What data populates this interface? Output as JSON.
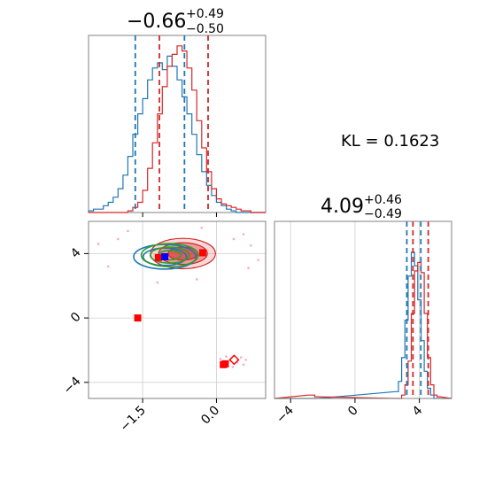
{
  "colors": {
    "blue": "#1f77b4",
    "red": "#d62728",
    "green": "#2ca02c",
    "pink": "#f5a9c8",
    "marker_red": "#ff0000",
    "marker_blue": "#0000ff"
  },
  "chart_data": {
    "type": "corner",
    "parameters": [
      {
        "title_center": "−0.66",
        "title_plus": "+0.49",
        "title_minus": "−0.50",
        "range": [
          -2.6,
          1.0
        ],
        "ticks": [
          -1.5,
          0.0
        ],
        "tick_labels": [
          "−1.5",
          "0.0"
        ],
        "quantiles": {
          "blue": [
            -1.65,
            -0.65
          ],
          "red": [
            -1.16,
            -0.17
          ]
        },
        "histogram_x": [
          -1.05,
          -0.95,
          -0.85,
          -0.75,
          -0.65,
          -0.55,
          -0.45,
          -0.35,
          -0.25,
          -0.15,
          -0.05,
          0.05,
          0.15,
          0.25,
          0.35,
          0.45,
          0.55,
          0.65,
          0.75,
          0.85,
          0.95
        ],
        "histogram_x_full": [
          -2.55,
          -2.45,
          -2.35,
          -2.25,
          -2.15,
          -2.05,
          -1.95,
          -1.85,
          -1.75,
          -1.65,
          -1.55,
          -1.45,
          -1.35,
          -1.25,
          -1.15,
          -1.05,
          -0.95,
          -0.85,
          -0.75,
          -0.65,
          -0.55,
          -0.45,
          -0.35,
          -0.25,
          -0.15,
          -0.05,
          0.05,
          0.15,
          0.25,
          0.35,
          0.45,
          0.55,
          0.65,
          0.75,
          0.85,
          0.95
        ],
        "histogram_blue": [
          0.01,
          0.02,
          0.02,
          0.04,
          0.06,
          0.09,
          0.14,
          0.22,
          0.33,
          0.46,
          0.58,
          0.67,
          0.78,
          0.85,
          0.88,
          0.84,
          0.92,
          0.86,
          0.78,
          0.68,
          0.58,
          0.46,
          0.34,
          0.24,
          0.16,
          0.1,
          0.06,
          0.04,
          0.02,
          0.01,
          0.0,
          0.0,
          0.0,
          0.0,
          0.0,
          0.0
        ],
        "histogram_red": [
          0.0,
          0.0,
          0.0,
          0.0,
          0.0,
          0.0,
          0.0,
          0.0,
          0.01,
          0.03,
          0.06,
          0.13,
          0.26,
          0.41,
          0.58,
          0.74,
          0.86,
          0.93,
          0.98,
          0.95,
          0.85,
          0.72,
          0.54,
          0.38,
          0.24,
          0.14,
          0.08,
          0.05,
          0.04,
          0.03,
          0.02,
          0.01,
          0.01,
          0.0,
          0.0,
          0.0
        ]
      },
      {
        "title_center": "4.09",
        "title_plus": "+0.46",
        "title_minus": "−0.49",
        "range": [
          -5.0,
          6.0
        ],
        "ticks": [
          -4,
          0,
          4
        ],
        "tick_labels": [
          "−4",
          "0",
          "4"
        ],
        "quantiles": {
          "blue": [
            3.22,
            4.09
          ],
          "red": [
            3.6,
            4.55
          ]
        },
        "histogram_x_full": [
          -2.8,
          -2.6,
          -2.4,
          2.6,
          2.8,
          3.0,
          3.2,
          3.4,
          3.6,
          3.8,
          4.0,
          4.2,
          4.4,
          4.6,
          4.8,
          5.0,
          5.2
        ],
        "histogram_blue": [
          0.0,
          0.0,
          0.0,
          0.04,
          0.1,
          0.24,
          0.46,
          0.72,
          0.86,
          0.78,
          0.58,
          0.34,
          0.16,
          0.06,
          0.02,
          0.0,
          0.0
        ],
        "histogram_red": [
          0.02,
          0.02,
          0.01,
          0.0,
          0.0,
          0.02,
          0.08,
          0.22,
          0.5,
          0.75,
          0.8,
          0.74,
          0.5,
          0.24,
          0.08,
          0.02,
          0.01
        ]
      }
    ],
    "joint": {
      "x_range": [
        -2.6,
        1.0
      ],
      "y_range": [
        -5.0,
        6.0
      ],
      "contours": [
        {
          "color": "red",
          "filled": true,
          "cx": -0.68,
          "cy": 4.0,
          "rx": 1.2,
          "ry": 1.05,
          "opacity": 0.18
        },
        {
          "color": "red",
          "filled": true,
          "cx": -0.68,
          "cy": 4.0,
          "rx": 0.9,
          "ry": 0.75,
          "opacity": 0.35
        },
        {
          "color": "red",
          "filled": true,
          "cx": -0.68,
          "cy": 4.0,
          "rx": 0.55,
          "ry": 0.45,
          "opacity": 0.55
        },
        {
          "color": "blue",
          "filled": false,
          "cx": -1.05,
          "cy": 3.8,
          "rx": 1.15,
          "ry": 0.85,
          "opacity": 1
        },
        {
          "color": "blue",
          "filled": false,
          "cx": -1.05,
          "cy": 3.8,
          "rx": 0.8,
          "ry": 0.6,
          "opacity": 1
        },
        {
          "color": "green",
          "filled": false,
          "cx": -0.95,
          "cy": 3.9,
          "rx": 1.05,
          "ry": 0.8,
          "opacity": 1
        },
        {
          "color": "green",
          "filled": false,
          "cx": -0.95,
          "cy": 3.9,
          "rx": 0.72,
          "ry": 0.55,
          "opacity": 1
        },
        {
          "color": "green",
          "filled": false,
          "cx": -0.95,
          "cy": 3.9,
          "rx": 0.42,
          "ry": 0.32,
          "opacity": 1
        }
      ],
      "markers": [
        {
          "x": -1.18,
          "y": 3.75,
          "color": "marker_red",
          "shape": "square"
        },
        {
          "x": -1.05,
          "y": 3.8,
          "color": "marker_blue",
          "shape": "square"
        },
        {
          "x": -0.28,
          "y": 4.05,
          "color": "marker_red",
          "shape": "square"
        },
        {
          "x": -1.6,
          "y": 0.0,
          "color": "marker_red",
          "shape": "square"
        },
        {
          "x": 0.14,
          "y": -2.9,
          "color": "marker_red",
          "shape": "square"
        },
        {
          "x": 0.18,
          "y": -2.85,
          "color": "marker_red",
          "shape": "square"
        },
        {
          "x": 0.36,
          "y": -2.6,
          "color": "marker_red",
          "shape": "diamond"
        }
      ],
      "scatter_points": [
        {
          "x": 0.28,
          "y": -2.6
        },
        {
          "x": 0.42,
          "y": -2.75
        },
        {
          "x": 0.5,
          "y": -2.45
        },
        {
          "x": 0.2,
          "y": -2.4
        },
        {
          "x": 0.55,
          "y": -2.9
        },
        {
          "x": 0.08,
          "y": -2.55
        },
        {
          "x": 0.33,
          "y": -3.05
        },
        {
          "x": 0.6,
          "y": -2.6
        },
        {
          "x": -2.2,
          "y": 3.2
        },
        {
          "x": -2.4,
          "y": 4.6
        },
        {
          "x": 0.7,
          "y": 4.5
        },
        {
          "x": 0.85,
          "y": 3.6
        },
        {
          "x": -1.8,
          "y": 5.4
        },
        {
          "x": 0.55,
          "y": 5.2
        },
        {
          "x": -0.3,
          "y": 5.6
        },
        {
          "x": -1.2,
          "y": 2.2
        },
        {
          "x": -0.4,
          "y": 2.4
        },
        {
          "x": 0.35,
          "y": 4.9
        },
        {
          "x": -2.0,
          "y": 4.9
        },
        {
          "x": 0.65,
          "y": 3.1
        }
      ]
    },
    "annotation": "KL = 0.1623"
  }
}
